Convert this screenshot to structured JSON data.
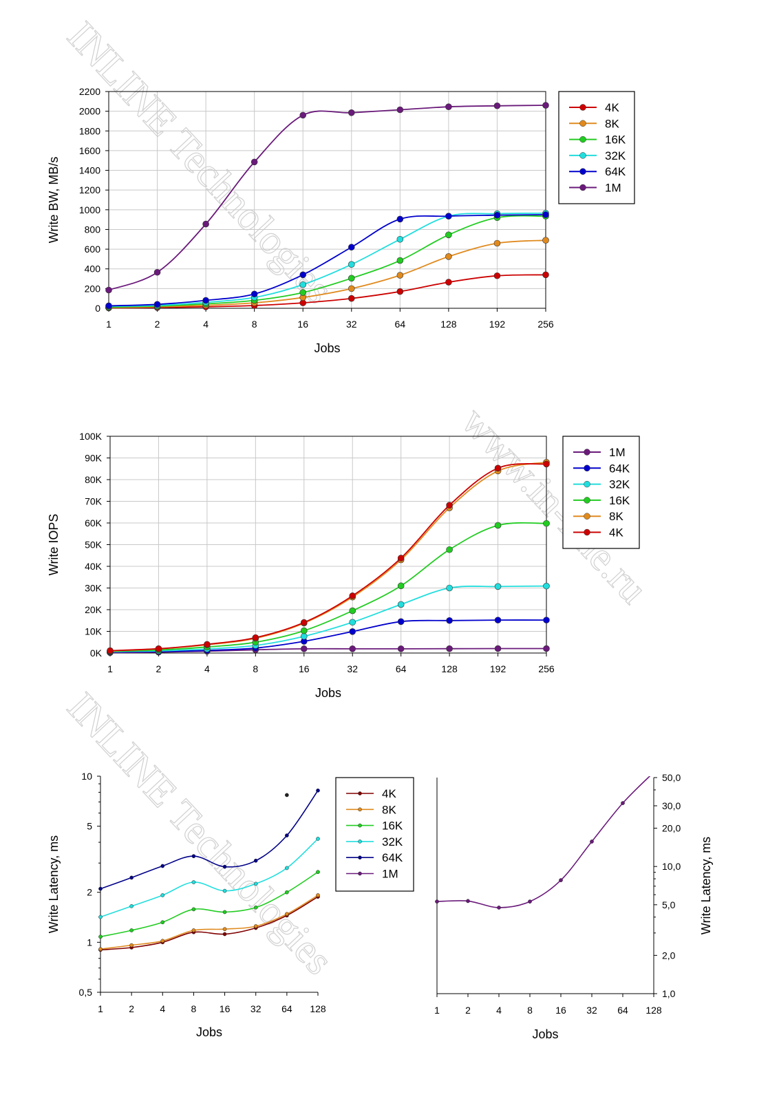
{
  "watermarks": [
    "INLINE Technologies",
    "www.in-line.ru",
    "INLINE Technologies"
  ],
  "chart_data": [
    {
      "id": "bw",
      "type": "line",
      "xscale": "categorical",
      "categories": [
        "1",
        "2",
        "4",
        "8",
        "16",
        "32",
        "64",
        "128",
        "192",
        "256"
      ],
      "xlabel": "Jobs",
      "ylabel": "Write BW, MB/s",
      "ylim": [
        0,
        2200
      ],
      "yticks": [
        0,
        200,
        400,
        600,
        800,
        1000,
        1200,
        1400,
        1600,
        1800,
        2000,
        2200
      ],
      "ytick_labels": [
        "0",
        "200",
        "400",
        "600",
        "800",
        "1000",
        "1200",
        "1400",
        "1600",
        "1800",
        "2000",
        "2200"
      ],
      "grid": true,
      "legend_position": "right",
      "legend_order": [
        "4K",
        "8K",
        "16K",
        "32K",
        "64K",
        "1M"
      ],
      "series": [
        {
          "name": "4K",
          "color": "#cc0000",
          "values": [
            4,
            8,
            15,
            28,
            55,
            100,
            170,
            265,
            330,
            340
          ]
        },
        {
          "name": "8K",
          "color": "#e08a1e",
          "values": [
            8,
            15,
            30,
            55,
            110,
            200,
            335,
            525,
            660,
            690
          ]
        },
        {
          "name": "16K",
          "color": "#22cc22",
          "values": [
            12,
            22,
            45,
            80,
            160,
            305,
            485,
            745,
            920,
            935
          ]
        },
        {
          "name": "32K",
          "color": "#22dddd",
          "values": [
            20,
            30,
            60,
            110,
            240,
            445,
            700,
            935,
            960,
            965
          ]
        },
        {
          "name": "64K",
          "color": "#0000cc",
          "values": [
            25,
            40,
            80,
            145,
            340,
            620,
            905,
            935,
            945,
            950
          ]
        },
        {
          "name": "1M",
          "color": "#6a1a7a",
          "values": [
            185,
            365,
            855,
            1485,
            1960,
            1985,
            2015,
            2045,
            2055,
            2060
          ]
        }
      ]
    },
    {
      "id": "iops",
      "type": "line",
      "xscale": "categorical",
      "categories": [
        "1",
        "2",
        "4",
        "8",
        "16",
        "32",
        "64",
        "128",
        "192",
        "256"
      ],
      "xlabel": "Jobs",
      "ylabel": "Write IOPS",
      "ylim": [
        0,
        100000
      ],
      "yticks": [
        0,
        10000,
        20000,
        30000,
        40000,
        50000,
        60000,
        70000,
        80000,
        90000,
        100000
      ],
      "ytick_labels": [
        "0K",
        "10K",
        "20K",
        "30K",
        "40K",
        "50K",
        "60K",
        "70K",
        "80K",
        "90K",
        "100K"
      ],
      "grid": true,
      "legend_position": "right",
      "legend_order": [
        "1M",
        "64K",
        "32K",
        "16K",
        "8K",
        "4K"
      ],
      "series": [
        {
          "name": "1M",
          "color": "#6a1a7a",
          "values": [
            200,
            400,
            850,
            1500,
            1950,
            1950,
            1950,
            2000,
            2050,
            2050
          ]
        },
        {
          "name": "64K",
          "color": "#0000cc",
          "values": [
            450,
            700,
            1200,
            2300,
            5400,
            9900,
            14500,
            15000,
            15200,
            15200
          ]
        },
        {
          "name": "32K",
          "color": "#22dddd",
          "values": [
            650,
            1000,
            1900,
            3500,
            7700,
            14200,
            22400,
            30000,
            30700,
            30900
          ]
        },
        {
          "name": "16K",
          "color": "#22cc22",
          "values": [
            800,
            1400,
            2800,
            5000,
            10300,
            19500,
            31000,
            47700,
            58900,
            59800
          ]
        },
        {
          "name": "8K",
          "color": "#e08a1e",
          "values": [
            1000,
            1900,
            3800,
            6800,
            13800,
            25800,
            43000,
            67000,
            84000,
            88000
          ]
        },
        {
          "name": "4K",
          "color": "#cc0000",
          "values": [
            1100,
            2000,
            4000,
            7100,
            14100,
            26400,
            43800,
            68200,
            85300,
            87200
          ]
        }
      ]
    },
    {
      "id": "lat_small",
      "type": "line",
      "xscale": "categorical",
      "categories": [
        "1",
        "2",
        "4",
        "8",
        "16",
        "32",
        "64",
        "128"
      ],
      "xlabel": "Jobs",
      "ylabel": "Write Latency, ms",
      "yscale": "log",
      "ylim": [
        0.5,
        10
      ],
      "yticks": [
        0.5,
        1,
        2,
        5,
        10
      ],
      "ytick_labels": [
        "0,5",
        "1",
        "2",
        "5",
        "10"
      ],
      "grid": false,
      "legend_position": "right",
      "legend_order": [
        "4K",
        "8K",
        "16K",
        "32K",
        "64K",
        "1M"
      ],
      "series": [
        {
          "name": "4K",
          "color": "#800000",
          "values": [
            0.9,
            0.93,
            1.0,
            1.15,
            1.12,
            1.22,
            1.45,
            1.88
          ]
        },
        {
          "name": "8K",
          "color": "#e08a1e",
          "values": [
            0.91,
            0.96,
            1.02,
            1.18,
            1.2,
            1.25,
            1.48,
            1.92
          ]
        },
        {
          "name": "16K",
          "color": "#22cc22",
          "values": [
            1.08,
            1.18,
            1.32,
            1.58,
            1.52,
            1.62,
            2.0,
            2.65
          ]
        },
        {
          "name": "32K",
          "color": "#22dddd",
          "values": [
            1.42,
            1.65,
            1.92,
            2.3,
            2.04,
            2.25,
            2.8,
            4.2
          ]
        },
        {
          "name": "64K",
          "color": "#000088",
          "values": [
            2.1,
            2.45,
            2.88,
            3.3,
            2.85,
            3.1,
            4.4,
            8.2
          ]
        },
        {
          "name": "1M",
          "color": "#6a1a7a",
          "values": [
            null,
            null,
            null,
            null,
            null,
            null,
            7.7,
            null
          ]
        }
      ]
    },
    {
      "id": "lat_large",
      "type": "line",
      "xscale": "categorical",
      "categories": [
        "1",
        "2",
        "4",
        "8",
        "16",
        "32",
        "64",
        "128"
      ],
      "xlabel": "Jobs",
      "ylabel": "Write Latency, ms",
      "yscale": "log",
      "yaxis_side": "right",
      "ylim": [
        1,
        50
      ],
      "yticks": [
        1,
        2,
        5,
        10,
        20,
        30,
        50
      ],
      "ytick_labels": [
        "1,0",
        "2,0",
        "5,0",
        "10,0",
        "20,0",
        "30,0",
        "50,0"
      ],
      "grid": false,
      "series": [
        {
          "name": "1M",
          "color": "#6a1a7a",
          "values": [
            5.3,
            5.35,
            4.75,
            5.3,
            7.8,
            15.7,
            31.5,
            55
          ]
        }
      ]
    }
  ]
}
